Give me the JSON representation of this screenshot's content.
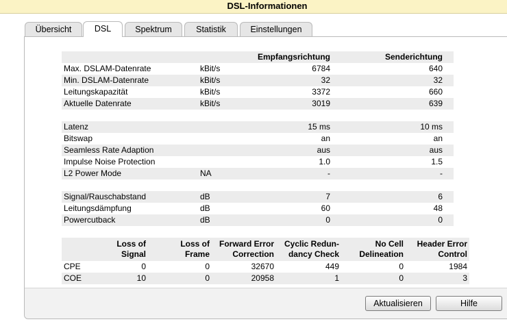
{
  "header": {
    "title": "DSL-Informationen"
  },
  "tabs": [
    "Übersicht",
    "DSL",
    "Spektrum",
    "Statistik",
    "Einstellungen"
  ],
  "line_table": {
    "headers": [
      "Empfangsrichtung",
      "Senderichtung"
    ],
    "groups": [
      [
        {
          "label": "Max. DSLAM-Datenrate",
          "unit": "kBit/s",
          "rx": "6784",
          "tx": "640"
        },
        {
          "label": "Min. DSLAM-Datenrate",
          "unit": "kBit/s",
          "rx": "32",
          "tx": "32"
        },
        {
          "label": "Leitungskapazität",
          "unit": "kBit/s",
          "rx": "3372",
          "tx": "660"
        },
        {
          "label": "Aktuelle Datenrate",
          "unit": "kBit/s",
          "rx": "3019",
          "tx": "639"
        }
      ],
      [
        {
          "label": "Latenz",
          "rx": "15 ms",
          "tx": "10 ms"
        },
        {
          "label": "Bitswap",
          "rx": "an",
          "tx": "an"
        },
        {
          "label": "Seamless Rate Adaption",
          "rx": "aus",
          "tx": "aus"
        },
        {
          "label": "Impulse Noise Protection",
          "rx": "1.0",
          "tx": "1.5"
        },
        {
          "label": "L2 Power Mode",
          "unit": "NA",
          "rx": "-",
          "tx": "-"
        }
      ],
      [
        {
          "label": "Signal/Rauschabstand",
          "unit": "dB",
          "rx": "7",
          "tx": "6"
        },
        {
          "label": "Leitungsdämpfung",
          "unit": "dB",
          "rx": "60",
          "tx": "48"
        },
        {
          "label": "Powercutback",
          "unit": "dB",
          "rx": "0",
          "tx": "0"
        }
      ]
    ]
  },
  "error_table": {
    "headers": [
      "Loss of\nSignal",
      "Loss of\nFrame",
      "Forward Error\nCorrection",
      "Cyclic Redun-\ndancy Check",
      "No Cell\nDelineation",
      "Header Error\nControl"
    ],
    "rows": [
      [
        "CPE",
        "0",
        "0",
        "32670",
        "449",
        "0",
        "1984"
      ],
      [
        "COE",
        "10",
        "0",
        "20958",
        "1",
        "0",
        "3"
      ]
    ]
  },
  "buttons": [
    "Aktualisieren",
    "Hilfe"
  ]
}
